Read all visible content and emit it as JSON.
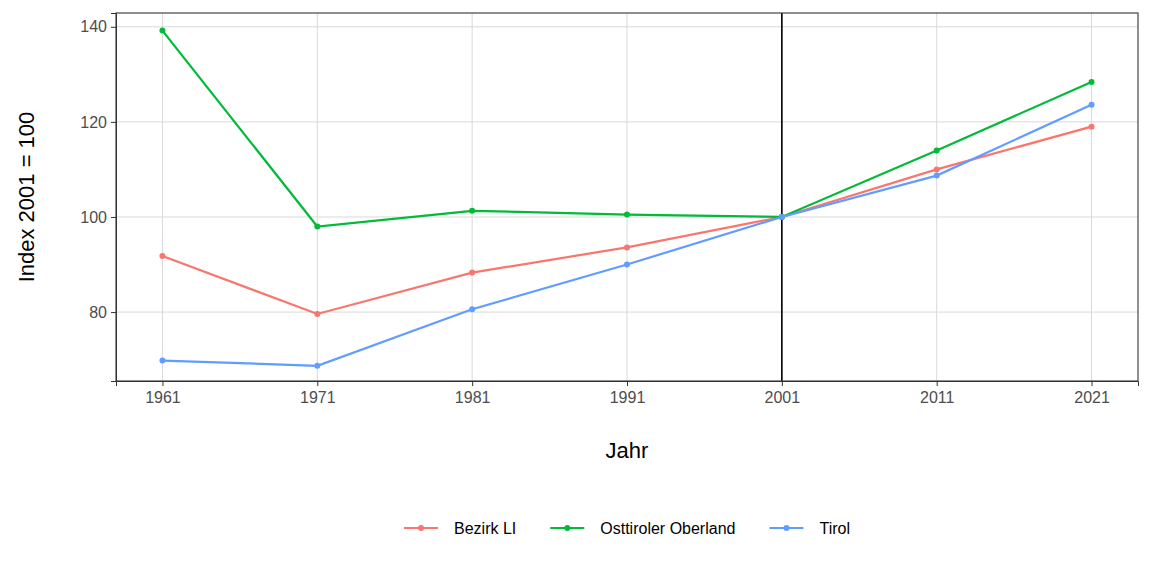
{
  "chart_data": {
    "type": "line",
    "x_label": "Jahr",
    "y_label": "Index 2001 = 100",
    "x": [
      1961,
      1971,
      1981,
      1991,
      2001,
      2011,
      2021
    ],
    "xlim": [
      1958,
      2024
    ],
    "xticks": [
      1961,
      1971,
      1981,
      1991,
      2001,
      2011,
      2021
    ],
    "ylim": [
      65.5,
      142.9
    ],
    "yticks": [
      80,
      100,
      120,
      140
    ],
    "grid": true,
    "legend": "bottom",
    "marker": "circle",
    "vlines": [
      2001
    ],
    "series": [
      {
        "name": "Bezirk LI",
        "color": "#F8766D",
        "values": [
          91.8,
          79.6,
          88.3,
          93.6,
          100,
          110.0,
          119.0
        ]
      },
      {
        "name": "Osttiroler Oberland",
        "color": "#00BA38",
        "values": [
          139.2,
          98.0,
          101.3,
          100.5,
          100,
          114.0,
          128.4
        ]
      },
      {
        "name": "Tirol",
        "color": "#619CFF",
        "values": [
          69.8,
          68.7,
          80.6,
          90.0,
          100,
          108.7,
          123.6
        ]
      }
    ]
  }
}
